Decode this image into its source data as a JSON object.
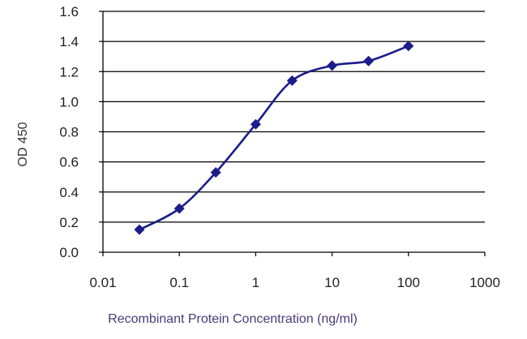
{
  "chart_data": {
    "type": "line",
    "title": "",
    "xlabel": "Recombinant Protein Concentration (ng/ml)",
    "ylabel": "OD 450",
    "xscale": "log",
    "xlim": [
      0.01,
      1000
    ],
    "ylim": [
      0.0,
      1.6
    ],
    "x_ticks": [
      "0.01",
      "0.1",
      "1",
      "10",
      "100",
      "1000"
    ],
    "y_ticks": [
      "0.0",
      "0.2",
      "0.4",
      "0.6",
      "0.8",
      "1.0",
      "1.2",
      "1.4",
      "1.6"
    ],
    "grid": "horizontal",
    "series": [
      {
        "x": [
          0.03,
          0.1,
          0.3,
          1,
          3,
          10,
          30,
          100
        ],
        "y": [
          0.15,
          0.29,
          0.53,
          0.85,
          1.14,
          1.24,
          1.27,
          1.37
        ]
      }
    ],
    "colors": {
      "line": "#1c1c8a",
      "marker": "#1c1c8a",
      "axis": "#000000",
      "grid": "#000000",
      "text": "#222222",
      "xlabel_text": "#4a3a7a",
      "ylabel_text": "#333333"
    }
  }
}
